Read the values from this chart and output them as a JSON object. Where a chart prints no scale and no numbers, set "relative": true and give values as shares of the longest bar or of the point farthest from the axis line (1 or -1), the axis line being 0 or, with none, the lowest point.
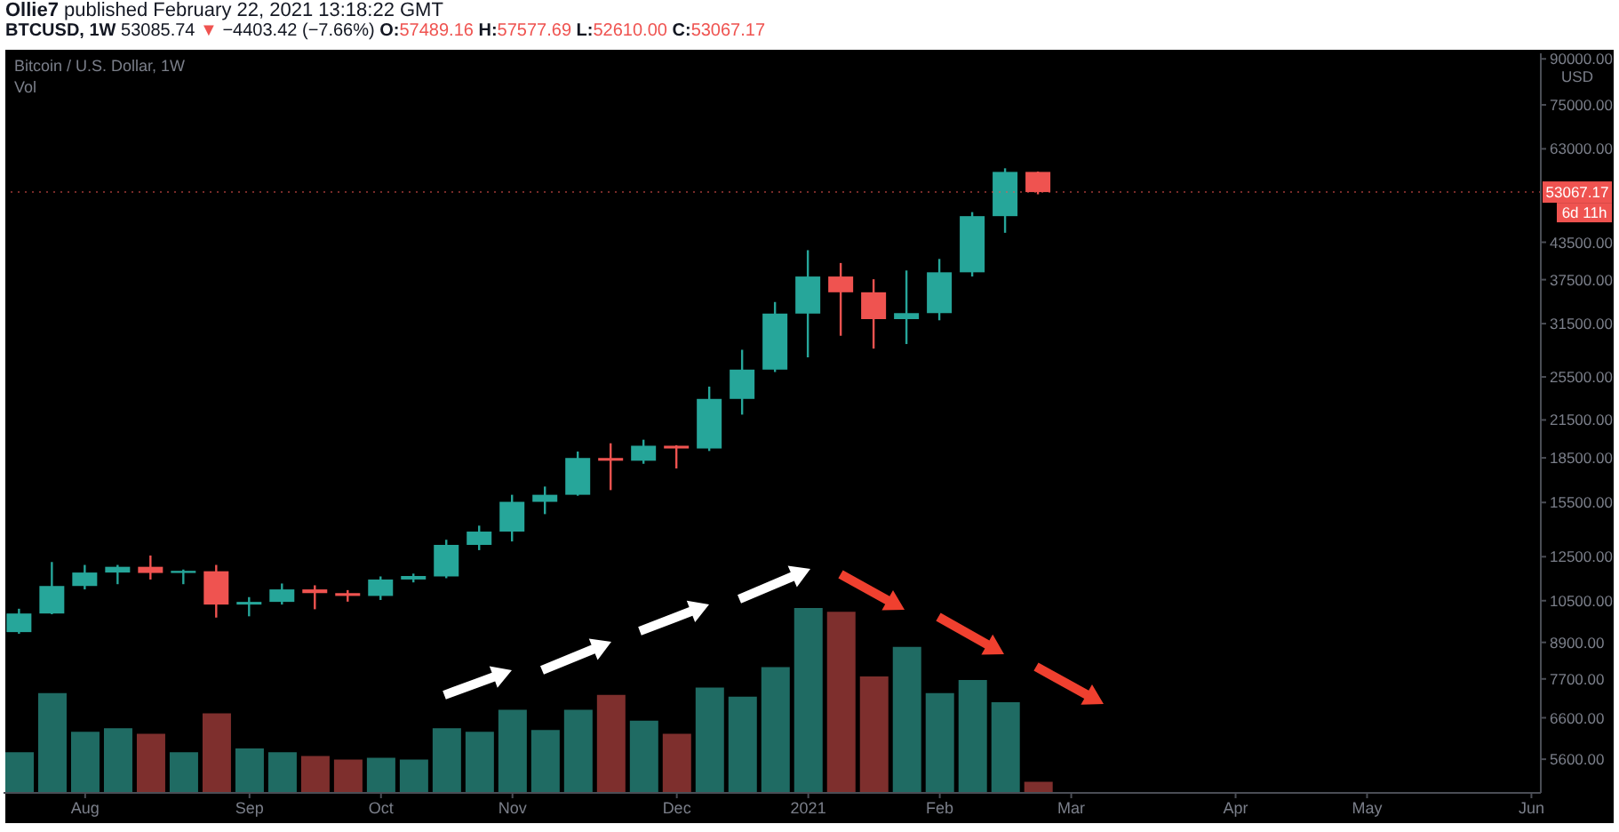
{
  "chart_data": [
    {
      "type": "candlestick",
      "title": "Ollie7 published February 22, 2021 13:18:22 GMT",
      "subtitle": "BTCUSD, 1W 53085.74 ▼ −4403.42 (−7.66%) O:57489.16 H:57577.69 L:52610.00 C:53067.17",
      "annotations": [
        "Bitcoin / U.S. Dollar, 1W",
        "6d 11h"
      ],
      "ylabel": "USD",
      "x": [
        "2020-07-20",
        "2020-07-27",
        "2020-08-03",
        "2020-08-10",
        "2020-08-17",
        "2020-08-24",
        "2020-08-31",
        "2020-09-07",
        "2020-09-14",
        "2020-09-21",
        "2020-09-28",
        "2020-10-05",
        "2020-10-12",
        "2020-10-19",
        "2020-10-26",
        "2020-11-02",
        "2020-11-09",
        "2020-11-16",
        "2020-11-23",
        "2020-11-30",
        "2020-12-07",
        "2020-12-14",
        "2020-12-21",
        "2020-12-28",
        "2021-01-04",
        "2021-01-11",
        "2021-01-18",
        "2021-01-25",
        "2021-02-01",
        "2021-02-08",
        "2021-02-15",
        "2021-02-22"
      ],
      "ohlc": [
        [
          9270,
          10170,
          9210,
          9980
        ],
        [
          9980,
          12240,
          9950,
          11130
        ],
        [
          11130,
          12100,
          10980,
          11740
        ],
        [
          11740,
          12100,
          11210,
          12010
        ],
        [
          12010,
          12560,
          11420,
          11720
        ],
        [
          11720,
          11880,
          11210,
          11820
        ],
        [
          11800,
          12100,
          9820,
          10340
        ],
        [
          10340,
          10650,
          9870,
          10450
        ],
        [
          10450,
          11240,
          10340,
          10980
        ],
        [
          10980,
          11160,
          10150,
          10820
        ],
        [
          10820,
          10950,
          10460,
          10700
        ],
        [
          10700,
          11560,
          10530,
          11420
        ],
        [
          11420,
          11690,
          11290,
          11580
        ],
        [
          11560,
          13370,
          11480,
          13100
        ],
        [
          13100,
          14140,
          12830,
          13810
        ],
        [
          13810,
          15980,
          13280,
          15540
        ],
        [
          15540,
          16510,
          14800,
          15980
        ],
        [
          15980,
          18970,
          15920,
          18490
        ],
        [
          18490,
          19600,
          16280,
          18290
        ],
        [
          18290,
          19880,
          18070,
          19410
        ],
        [
          19410,
          19450,
          17740,
          19200
        ],
        [
          19200,
          24540,
          19010,
          23370
        ],
        [
          23370,
          28400,
          21960,
          26250
        ],
        [
          26250,
          34320,
          26000,
          32780
        ],
        [
          32780,
          42150,
          27560,
          37970
        ],
        [
          37970,
          40060,
          30020,
          35670
        ],
        [
          35670,
          37560,
          28530,
          32070
        ],
        [
          32070,
          38890,
          29050,
          32840
        ],
        [
          32840,
          40710,
          31920,
          38610
        ],
        [
          38610,
          49020,
          37970,
          48240
        ],
        [
          48240,
          58320,
          45160,
          57490
        ],
        [
          57489.16,
          57577.69,
          52610.0,
          53067.17
        ]
      ],
      "colors": [
        "#26a69a",
        "#26a69a",
        "#26a69a",
        "#26a69a",
        "#ef5350",
        "#26a69a",
        "#ef5350",
        "#26a69a",
        "#26a69a",
        "#ef5350",
        "#ef5350",
        "#26a69a",
        "#26a69a",
        "#26a69a",
        "#26a69a",
        "#26a69a",
        "#26a69a",
        "#26a69a",
        "#ef5350",
        "#26a69a",
        "#ef5350",
        "#26a69a",
        "#26a69a",
        "#26a69a",
        "#26a69a",
        "#ef5350",
        "#ef5350",
        "#26a69a",
        "#26a69a",
        "#26a69a",
        "#26a69a",
        "#ef5350"
      ],
      "xlim": [
        "2020-07-17",
        "2021-06-09"
      ],
      "xticks": [
        {
          "value": "2020-08-03",
          "label": "Aug"
        },
        {
          "value": "2020-09-07",
          "label": "Sep"
        },
        {
          "value": "2020-10-05",
          "label": "Oct"
        },
        {
          "value": "2020-11-02",
          "label": "Nov"
        },
        {
          "value": "2020-12-07",
          "label": "Dec"
        },
        {
          "value": "2021-01-04",
          "label": "2021"
        },
        {
          "value": "2021-02-01",
          "label": "Feb"
        },
        {
          "value": "2021-03-01",
          "label": "Mar"
        },
        {
          "value": "2021-04-05",
          "label": "Apr"
        },
        {
          "value": "2021-05-03",
          "label": "May"
        },
        {
          "value": "2021-06-07",
          "label": "Jun"
        }
      ],
      "ylim": [
        4900,
        92000
      ],
      "log": true,
      "yticks": [
        {
          "value": 5600,
          "label": "5600.00"
        },
        {
          "value": 6600,
          "label": "6600.00"
        },
        {
          "value": 7700,
          "label": "7700.00"
        },
        {
          "value": 8900,
          "label": "8900.00"
        },
        {
          "value": 10500,
          "label": "10500.00"
        },
        {
          "value": 12500,
          "label": "12500.00"
        },
        {
          "value": 15500,
          "label": "15500.00"
        },
        {
          "value": 18500,
          "label": "18500.00"
        },
        {
          "value": 21500,
          "label": "21500.00"
        },
        {
          "value": 25500,
          "label": "25500.00"
        },
        {
          "value": 31500,
          "label": "31500.00"
        },
        {
          "value": 37500,
          "label": "37500.00"
        },
        {
          "value": 43500,
          "label": "43500.00"
        },
        {
          "value": 63000,
          "label": "63000.00"
        },
        {
          "value": 75000,
          "label": "75000.00"
        },
        {
          "value": 90000,
          "label": "90000.00"
        }
      ],
      "ref_lines": [
        {
          "axis": "y",
          "value": 53067.17,
          "label": "53067.17",
          "color": "#ef5350",
          "line_style": "dotted"
        }
      ]
    },
    {
      "type": "bar",
      "title": "Vol",
      "relative": true,
      "tick_labels": false,
      "categories": [
        null,
        null,
        null,
        null,
        null,
        null,
        null,
        null,
        null,
        null,
        null,
        null,
        null,
        null,
        null,
        null,
        null,
        null,
        null,
        null,
        null,
        null,
        null,
        null,
        null,
        null,
        null,
        null,
        null,
        null,
        null,
        null
      ],
      "values": [
        0.22,
        0.54,
        0.33,
        0.35,
        0.32,
        0.22,
        0.43,
        0.24,
        0.22,
        0.2,
        0.18,
        0.19,
        0.18,
        0.35,
        0.33,
        0.45,
        0.34,
        0.45,
        0.53,
        0.39,
        0.32,
        0.57,
        0.52,
        0.68,
        1,
        0.98,
        0.63,
        0.79,
        0.54,
        0.61,
        0.49,
        0.06
      ],
      "colors": [
        "#1f6b63",
        "#1f6b63",
        "#1f6b63",
        "#1f6b63",
        "#7e2f2d",
        "#1f6b63",
        "#7e2f2d",
        "#1f6b63",
        "#1f6b63",
        "#7e2f2d",
        "#7e2f2d",
        "#1f6b63",
        "#1f6b63",
        "#1f6b63",
        "#1f6b63",
        "#1f6b63",
        "#1f6b63",
        "#1f6b63",
        "#7e2f2d",
        "#1f6b63",
        "#7e2f2d",
        "#1f6b63",
        "#1f6b63",
        "#1f6b63",
        "#1f6b63",
        "#7e2f2d",
        "#7e2f2d",
        "#1f6b63",
        "#1f6b63",
        "#1f6b63",
        "#1f6b63",
        "#7e2f2d"
      ]
    }
  ]
}
